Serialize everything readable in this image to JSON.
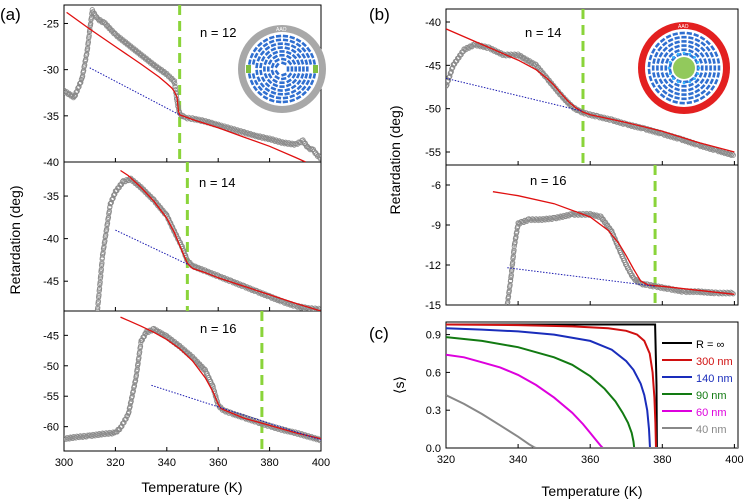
{
  "chart_data": [
    {
      "id": "a1",
      "panel_label": "(a)",
      "annotation": "n = 12",
      "type": "scatter",
      "xlim": [
        300,
        400
      ],
      "ylim": [
        -40,
        -23
      ],
      "yticks": [
        "-25",
        "-30",
        "-35",
        "-40"
      ],
      "transition_T": 345,
      "inset": "ring-dense",
      "series": [
        {
          "name": "data",
          "style": "gray-circles",
          "x": [
            300,
            304,
            307,
            309,
            311,
            313,
            316,
            320,
            325,
            330,
            335,
            340,
            343,
            344,
            345,
            347,
            350,
            355,
            360,
            365,
            370,
            375,
            380,
            385,
            390,
            393,
            395,
            397,
            398,
            399,
            400
          ],
          "y": [
            -32.3,
            -33,
            -31,
            -28,
            -23.6,
            -24.5,
            -25,
            -26.2,
            -27.3,
            -28.4,
            -29.5,
            -30.5,
            -31.3,
            -33.5,
            -34.8,
            -35.2,
            -35.3,
            -35.6,
            -36,
            -36.4,
            -36.8,
            -37.2,
            -37.5,
            -37.9,
            -38.1,
            -37.7,
            -38.5,
            -38.7,
            -39.1,
            -39.4,
            -39.6
          ]
        },
        {
          "name": "fit",
          "style": "red-line",
          "x": [
            301,
            310,
            320,
            330,
            337,
            340,
            342,
            343,
            344,
            344.5,
            345,
            350,
            360,
            370,
            380,
            390,
            394
          ],
          "y": [
            -23.8,
            -25.6,
            -27.5,
            -29.4,
            -30.8,
            -31.5,
            -32,
            -32.4,
            -33,
            -34.5,
            -34.9,
            -35.4,
            -36.3,
            -37.3,
            -38.3,
            -39.5,
            -40
          ]
        },
        {
          "name": "baseline",
          "style": "blue-dotted",
          "x": [
            310,
            345
          ],
          "y": [
            -29.8,
            -34.9
          ]
        }
      ]
    },
    {
      "id": "a2",
      "panel_label": "",
      "annotation": "n = 14",
      "type": "scatter",
      "xlim": [
        300,
        400
      ],
      "ylim": [
        -48.5,
        -31
      ],
      "yticks": [
        "-35",
        "-40",
        "-45"
      ],
      "transition_T": 348,
      "series": [
        {
          "name": "data",
          "style": "gray-circles",
          "x": [
            313,
            315,
            318,
            320,
            323,
            326,
            330,
            335,
            340,
            343,
            346,
            348,
            350,
            355,
            360,
            365,
            370,
            375,
            380,
            385,
            390,
            395,
            400
          ],
          "y": [
            -48.5,
            -42,
            -36,
            -34.5,
            -33.3,
            -33,
            -34,
            -35.5,
            -37.3,
            -39.2,
            -41,
            -42.6,
            -43.2,
            -43.8,
            -44.4,
            -45,
            -45.6,
            -46.2,
            -46.8,
            -47.4,
            -47.9,
            -48.2,
            -48.3
          ]
        },
        {
          "name": "fit",
          "style": "red-line",
          "x": [
            322,
            325,
            330,
            335,
            340,
            343,
            345,
            347,
            348,
            350,
            355,
            360,
            370,
            380,
            390,
            400
          ],
          "y": [
            -32,
            -32.6,
            -34,
            -35.6,
            -37.6,
            -39.3,
            -40.8,
            -42.2,
            -42.9,
            -43.5,
            -44,
            -44.6,
            -45.6,
            -46.6,
            -47.6,
            -48.5
          ]
        },
        {
          "name": "baseline",
          "style": "blue-dotted",
          "x": [
            320,
            348
          ],
          "y": [
            -39,
            -43
          ]
        }
      ]
    },
    {
      "id": "a3",
      "panel_label": "",
      "annotation": "n = 16",
      "type": "scatter",
      "xlim": [
        300,
        400
      ],
      "ylim": [
        -64,
        -41
      ],
      "yticks": [
        "-45",
        "-50",
        "-55",
        "-60"
      ],
      "xticks": [
        "300",
        "320",
        "340",
        "360",
        "380",
        "400"
      ],
      "xlabel": "Temperature (K)",
      "transition_T": 377,
      "series": [
        {
          "name": "data",
          "style": "gray-circles",
          "x": [
            300,
            305,
            310,
            315,
            320,
            322,
            325,
            328,
            330,
            332,
            335,
            340,
            345,
            350,
            355,
            358,
            360,
            362,
            365,
            370,
            375,
            380,
            385,
            390,
            395,
            400
          ],
          "y": [
            -62,
            -61.7,
            -61.5,
            -61.2,
            -61,
            -60.2,
            -58,
            -52,
            -46,
            -44.5,
            -44,
            -45.2,
            -46.8,
            -48.6,
            -50.8,
            -53.5,
            -56.5,
            -57.3,
            -57.8,
            -58.5,
            -59.2,
            -59.9,
            -60.5,
            -61,
            -61.6,
            -62.2
          ]
        },
        {
          "name": "fit",
          "style": "red-line",
          "x": [
            322,
            330,
            335,
            340,
            345,
            350,
            355,
            358,
            360,
            361,
            362,
            370,
            380,
            390,
            400
          ],
          "y": [
            -42,
            -43.5,
            -44.5,
            -45.7,
            -47.2,
            -49.2,
            -52,
            -54.3,
            -56.3,
            -57,
            -57.2,
            -58.6,
            -59.8,
            -61,
            -62
          ]
        },
        {
          "name": "baseline",
          "style": "blue-dotted",
          "x": [
            334,
            400
          ],
          "y": [
            -53.2,
            -62.2
          ]
        }
      ]
    },
    {
      "id": "b1",
      "panel_label": "(b)",
      "annotation": "n = 14",
      "type": "scatter",
      "xlim": [
        320,
        401
      ],
      "ylim": [
        -56.5,
        -38.5
      ],
      "yticks": [
        "-40",
        "-45",
        "-50",
        "-55"
      ],
      "transition_T": 358,
      "inset": "ring-core",
      "series": [
        {
          "name": "data",
          "style": "gray-circles",
          "x": [
            320,
            322,
            325,
            328,
            332,
            336,
            340,
            345,
            348,
            352,
            355,
            357,
            359,
            362,
            366,
            370,
            375,
            380,
            385,
            390,
            395,
            400
          ],
          "y": [
            -47.5,
            -45,
            -43.2,
            -42.6,
            -43,
            -43.8,
            -43.8,
            -45,
            -46.5,
            -48.5,
            -49.8,
            -50.3,
            -50.6,
            -50.9,
            -51.3,
            -51.8,
            -52.3,
            -52.9,
            -53.5,
            -54.2,
            -54.8,
            -55.4
          ]
        },
        {
          "name": "fit",
          "style": "red-line",
          "x": [
            320,
            330,
            340,
            345,
            348,
            350,
            352,
            354,
            356,
            358,
            360,
            370,
            380,
            390,
            400
          ],
          "y": [
            -40.8,
            -42.6,
            -44.4,
            -45.5,
            -46.5,
            -47.3,
            -48.3,
            -49.2,
            -49.9,
            -50.4,
            -50.7,
            -51.6,
            -52.6,
            -53.9,
            -55
          ]
        },
        {
          "name": "baseline",
          "style": "blue-dotted",
          "x": [
            320,
            358
          ],
          "y": [
            -46.5,
            -50.3
          ]
        }
      ]
    },
    {
      "id": "b2",
      "panel_label": "",
      "annotation": "n = 16",
      "type": "scatter",
      "xlim": [
        320,
        401
      ],
      "ylim": [
        -15,
        -4.5
      ],
      "yticks": [
        "-6",
        "-9",
        "-12",
        "-15"
      ],
      "transition_T": 378,
      "series": [
        {
          "name": "data",
          "style": "gray-circles",
          "x": [
            337,
            338,
            339,
            340,
            341,
            343,
            346,
            350,
            355,
            360,
            363,
            366,
            368,
            370,
            372,
            374,
            376,
            378,
            382,
            386,
            390,
            395,
            400
          ],
          "y": [
            -15,
            -13,
            -10.5,
            -8.9,
            -8.8,
            -8.6,
            -8.6,
            -8.5,
            -8.2,
            -8.2,
            -8.4,
            -9.5,
            -10.8,
            -12,
            -13,
            -13.4,
            -13.5,
            -13.6,
            -13.8,
            -14,
            -14,
            -14.1,
            -14.1
          ]
        },
        {
          "name": "fit",
          "style": "red-line",
          "x": [
            333,
            340,
            350,
            360,
            365,
            368,
            370,
            372,
            374,
            376,
            378,
            380,
            390,
            400
          ],
          "y": [
            -6.5,
            -6.8,
            -7.4,
            -8.4,
            -9.4,
            -10.4,
            -11.3,
            -12.3,
            -13.2,
            -13.5,
            -13.55,
            -13.6,
            -13.9,
            -14.2
          ]
        },
        {
          "name": "baseline",
          "style": "blue-dotted",
          "x": [
            337,
            378
          ],
          "y": [
            -12.2,
            -13.6
          ]
        }
      ]
    },
    {
      "id": "c",
      "panel_label": "(c)",
      "type": "line",
      "xlim": [
        320,
        401
      ],
      "ylim": [
        0,
        1
      ],
      "yticks": [
        "0.0",
        "0.3",
        "0.6",
        "0.9"
      ],
      "xticks": [
        "320",
        "340",
        "360",
        "380",
        "400"
      ],
      "xlabel": "Temperature (K)",
      "ylabel": "⟨s⟩",
      "series": [
        {
          "name": "R = ∞",
          "color": "#000000",
          "x": [
            320,
            330,
            340,
            350,
            360,
            370,
            375,
            378,
            378.4,
            378.5,
            401
          ],
          "y": [
            0.98,
            0.98,
            0.98,
            0.98,
            0.98,
            0.98,
            0.98,
            0.98,
            0.5,
            0,
            0
          ]
        },
        {
          "name": "300 nm",
          "color": "#d01010",
          "x": [
            320,
            340,
            355,
            365,
            370,
            373,
            375,
            376.5,
            377.3,
            377.8,
            378.1,
            378.25
          ],
          "y": [
            0.98,
            0.975,
            0.965,
            0.95,
            0.93,
            0.9,
            0.85,
            0.75,
            0.6,
            0.4,
            0.2,
            0
          ]
        },
        {
          "name": "140 nm",
          "color": "#1a2dbb",
          "x": [
            320,
            330,
            340,
            350,
            360,
            366,
            370,
            372,
            374,
            375,
            375.8,
            376.3,
            376.6
          ],
          "y": [
            0.95,
            0.94,
            0.925,
            0.9,
            0.85,
            0.78,
            0.69,
            0.62,
            0.51,
            0.42,
            0.3,
            0.15,
            0
          ]
        },
        {
          "name": "90 nm",
          "color": "#127a12",
          "x": [
            320,
            330,
            340,
            350,
            355,
            360,
            364,
            367,
            369,
            370.5,
            371.5,
            372,
            372.2
          ],
          "y": [
            0.88,
            0.85,
            0.8,
            0.72,
            0.66,
            0.57,
            0.47,
            0.37,
            0.28,
            0.2,
            0.12,
            0.05,
            0
          ]
        },
        {
          "name": "60 nm",
          "color": "#dd00dd",
          "x": [
            320,
            325,
            330,
            335,
            340,
            345,
            350,
            355,
            358,
            360,
            362,
            363,
            363.5
          ],
          "y": [
            0.74,
            0.72,
            0.68,
            0.64,
            0.58,
            0.5,
            0.4,
            0.28,
            0.19,
            0.12,
            0.05,
            0.015,
            0
          ]
        },
        {
          "name": "40 nm",
          "color": "#888888",
          "x": [
            320,
            325,
            330,
            335,
            340,
            343,
            344.5,
            345,
            401
          ],
          "y": [
            0.42,
            0.35,
            0.27,
            0.18,
            0.09,
            0.03,
            0.005,
            0,
            0
          ]
        }
      ]
    }
  ],
  "shared_ylabel": "Retardation (deg)"
}
